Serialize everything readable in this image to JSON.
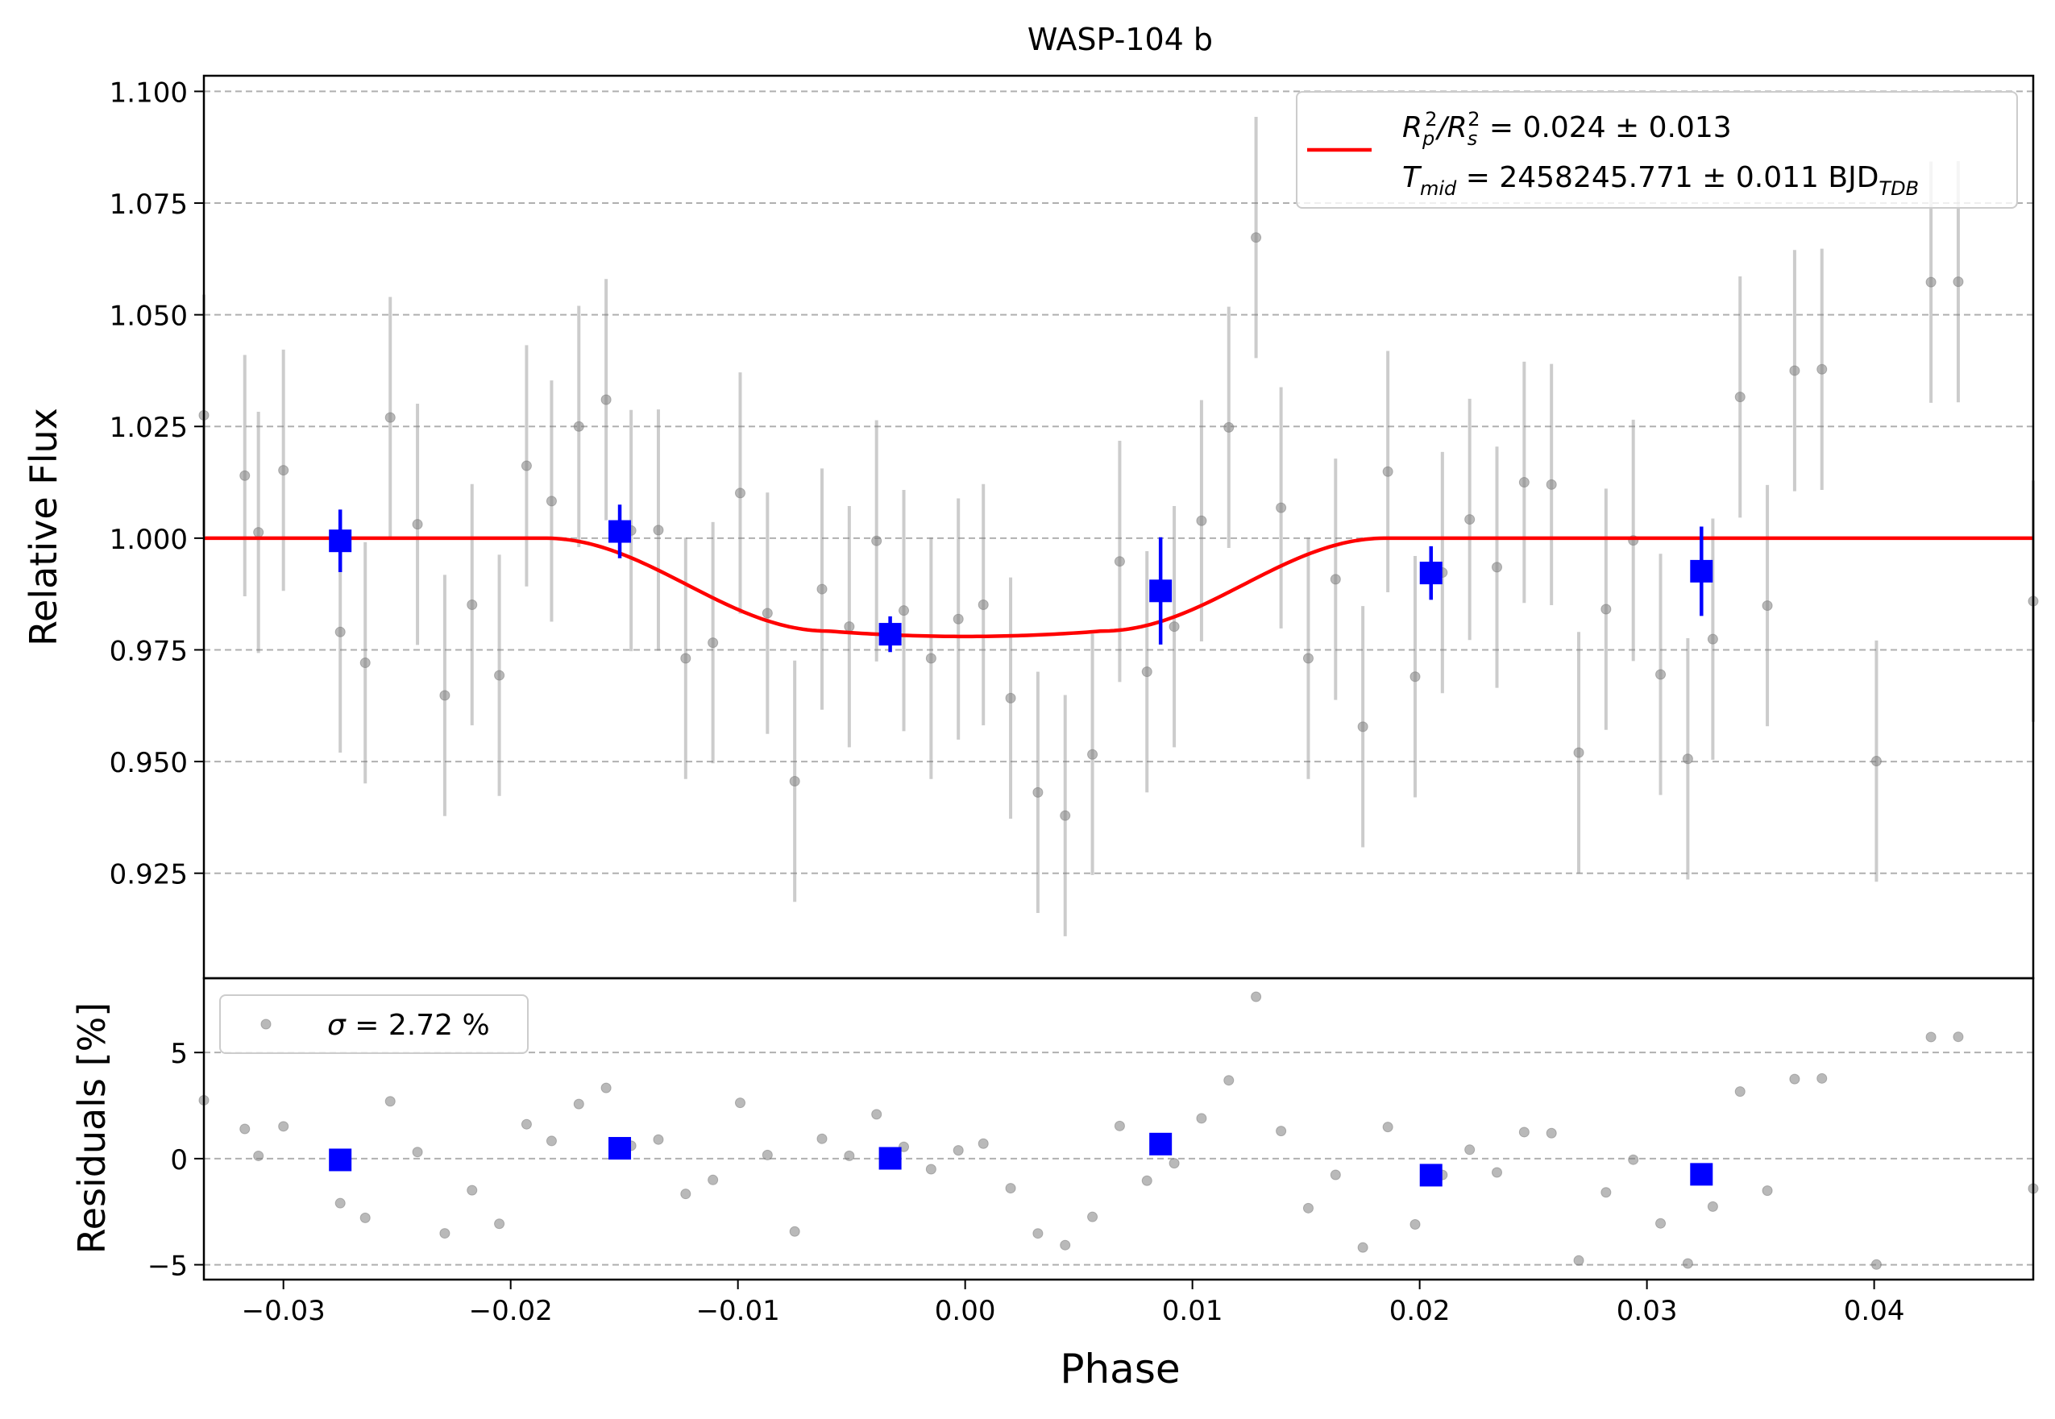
{
  "chart_data": [
    {
      "type": "scatter",
      "title": "WASP-104 b",
      "xlabel": "",
      "ylabel": "Relative Flux",
      "xlim": [
        -0.0335,
        0.047
      ],
      "ylim": [
        0.9015,
        1.1035
      ],
      "grid": "horizontal dashed",
      "yticks": [
        0.925,
        0.95,
        0.975,
        1.0,
        1.025,
        1.05,
        1.075,
        1.1
      ],
      "ytick_labels": [
        "0.925",
        "0.950",
        "0.975",
        "1.000",
        "1.025",
        "1.050",
        "1.075",
        "1.100"
      ],
      "legend": {
        "placement": "top-right",
        "entries": [
          {
            "line1_prefix": "R",
            "line1_sub1": "p",
            "line1_sup1": "2",
            "line1_mid": "/R",
            "line1_sub2": "s",
            "line1_sup2": "2",
            "line1_value": " = 0.024 ± 0.013",
            "line2_prefix": "T",
            "line2_sub": "mid",
            "line2_value": " = 2458245.771 ± 0.011 BJD",
            "line2_sub2": "TDB",
            "color": "#ff0000"
          }
        ]
      },
      "series": [
        {
          "role": "data",
          "color": "#808080",
          "points": [
            [
              -0.0335,
              1.0275,
              0.027
            ],
            [
              -0.0317,
              1.014,
              0.027
            ],
            [
              -0.0311,
              1.0013,
              0.027
            ],
            [
              -0.03,
              1.0152,
              0.027
            ],
            [
              -0.0275,
              0.979,
              0.027
            ],
            [
              -0.0264,
              0.9721,
              0.027
            ],
            [
              -0.0253,
              1.027,
              0.027
            ],
            [
              -0.0241,
              1.0031,
              0.027
            ],
            [
              -0.0229,
              0.9648,
              0.027
            ],
            [
              -0.0217,
              0.9851,
              0.027
            ],
            [
              -0.0205,
              0.9693,
              0.027
            ],
            [
              -0.0193,
              1.0162,
              0.027
            ],
            [
              -0.0182,
              1.0083,
              0.027
            ],
            [
              -0.017,
              1.025,
              0.027
            ],
            [
              -0.0158,
              1.031,
              0.027
            ],
            [
              -0.0147,
              1.0017,
              0.027
            ],
            [
              -0.0135,
              1.0018,
              0.027
            ],
            [
              -0.0123,
              0.9731,
              0.027
            ],
            [
              -0.0111,
              0.9766,
              0.027
            ],
            [
              -0.0099,
              1.0101,
              0.027
            ],
            [
              -0.0087,
              0.9832,
              0.027
            ],
            [
              -0.0075,
              0.9456,
              0.027
            ],
            [
              -0.0063,
              0.9886,
              0.027
            ],
            [
              -0.0051,
              0.9802,
              0.027
            ],
            [
              -0.0039,
              0.9994,
              0.027
            ],
            [
              -0.0027,
              0.9838,
              0.027
            ],
            [
              -0.0015,
              0.9731,
              0.027
            ],
            [
              -0.0003,
              0.9819,
              0.027
            ],
            [
              0.0008,
              0.9851,
              0.027
            ],
            [
              0.002,
              0.9642,
              0.027
            ],
            [
              0.0032,
              0.9431,
              0.027
            ],
            [
              0.0044,
              0.9379,
              0.027
            ],
            [
              0.0056,
              0.9516,
              0.027
            ],
            [
              0.0068,
              0.9948,
              0.027
            ],
            [
              0.008,
              0.9701,
              0.027
            ],
            [
              0.0092,
              0.9802,
              0.027
            ],
            [
              0.0104,
              1.0039,
              0.027
            ],
            [
              0.0116,
              1.0248,
              0.027
            ],
            [
              0.0128,
              1.0673,
              0.027
            ],
            [
              0.0139,
              1.0068,
              0.027
            ],
            [
              0.0151,
              0.9731,
              0.027
            ],
            [
              0.0163,
              0.9908,
              0.027
            ],
            [
              0.0175,
              0.9578,
              0.027
            ],
            [
              0.0186,
              1.0149,
              0.027
            ],
            [
              0.0198,
              0.969,
              0.027
            ],
            [
              0.021,
              0.9923,
              0.027
            ],
            [
              0.0222,
              1.0042,
              0.027
            ],
            [
              0.0234,
              0.9935,
              0.027
            ],
            [
              0.0246,
              1.0125,
              0.027
            ],
            [
              0.0258,
              1.012,
              0.027
            ],
            [
              0.027,
              0.952,
              0.027
            ],
            [
              0.0282,
              0.9841,
              0.027
            ],
            [
              0.0294,
              0.9995,
              0.027
            ],
            [
              0.0306,
              0.9695,
              0.027
            ],
            [
              0.0318,
              0.9506,
              0.027
            ],
            [
              0.0329,
              0.9774,
              0.027
            ],
            [
              0.0341,
              1.0316,
              0.027
            ],
            [
              0.0353,
              0.9849,
              0.027
            ],
            [
              0.0365,
              1.0375,
              0.027
            ],
            [
              0.0377,
              1.0378,
              0.027
            ],
            [
              0.0401,
              0.9501,
              0.027
            ],
            [
              0.0425,
              1.0573,
              0.027
            ],
            [
              0.0437,
              1.0574,
              0.027
            ],
            [
              0.047,
              0.9859,
              0.027
            ]
          ]
        },
        {
          "role": "binned",
          "color": "#0000ff",
          "points": [
            [
              -0.0275,
              0.9994,
              0.007
            ],
            [
              -0.0152,
              1.0015,
              0.006
            ],
            [
              -0.0033,
              0.9785,
              0.004
            ],
            [
              0.0086,
              0.9882,
              0.012
            ],
            [
              0.0205,
              0.9922,
              0.006
            ],
            [
              0.0324,
              0.9926,
              0.01
            ]
          ]
        },
        {
          "role": "model",
          "color": "#ff0000",
          "depth": 0.022,
          "t1": 0.0185,
          "t2": 0.006
        }
      ]
    },
    {
      "type": "scatter",
      "xlabel": "Phase",
      "ylabel": "Residuals [%]",
      "xlim": [
        -0.0335,
        0.047
      ],
      "ylim": [
        -5.7,
        8.5
      ],
      "yticks": [
        -5,
        0,
        5
      ],
      "ytick_labels": [
        "−5",
        "0",
        "5"
      ],
      "xticks": [
        -0.03,
        -0.02,
        -0.01,
        0.0,
        0.01,
        0.02,
        0.03,
        0.04
      ],
      "xtick_labels": [
        "−0.03",
        "−0.02",
        "−0.01",
        "0.00",
        "0.01",
        "0.02",
        "0.03",
        "0.04"
      ],
      "grid": "horizontal dashed",
      "legend": {
        "placement": "top-left",
        "entries": [
          {
            "symbol": "σ",
            "text": " = 2.72 %",
            "color": "#808080"
          }
        ]
      },
      "series": [
        {
          "role": "residuals",
          "color": "#808080"
        },
        {
          "role": "binned_residuals",
          "color": "#0000ff"
        }
      ]
    }
  ]
}
